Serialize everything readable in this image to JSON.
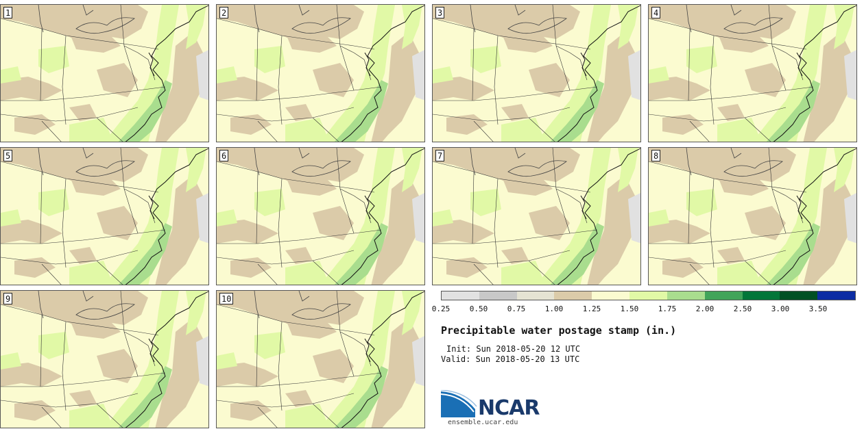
{
  "panels": [
    {
      "label": "1"
    },
    {
      "label": "2"
    },
    {
      "label": "3"
    },
    {
      "label": "4"
    },
    {
      "label": "5"
    },
    {
      "label": "6"
    },
    {
      "label": "7"
    },
    {
      "label": "8"
    },
    {
      "label": "9"
    },
    {
      "label": "10"
    }
  ],
  "legend": {
    "colors": [
      "#e1e1e1",
      "#c8c8c8",
      "#e5e3d3",
      "#dbcba9",
      "#fbfbd0",
      "#e1f9a6",
      "#a9dd8e",
      "#41a45a",
      "#027639",
      "#005024",
      "#0c2ca3"
    ],
    "ticks": [
      "0.25",
      "0.50",
      "0.75",
      "1.00",
      "1.25",
      "1.50",
      "1.75",
      "2.00",
      "2.50",
      "3.00",
      "3.50"
    ]
  },
  "title": "Precipitable water postage stamp (in.)",
  "init": "Init: Sun 2018-05-20 12 UTC",
  "valid": "Valid: Sun 2018-05-20 13 UTC",
  "logo": {
    "text": "NCAR",
    "url": "ensemble.ucar.edu",
    "colors": {
      "blue": "#1a6fb5",
      "navy": "#1a3a6b"
    }
  }
}
